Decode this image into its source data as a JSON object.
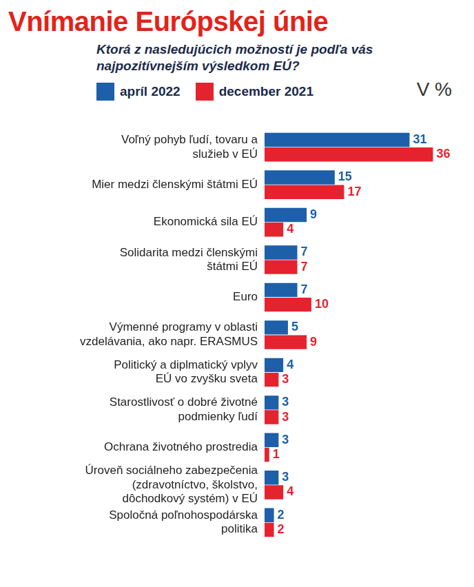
{
  "chart_data": {
    "type": "bar",
    "orientation": "horizontal",
    "title": "Vnímanie Európskej únie",
    "subtitle": "Ktorá z nasledujúcich možností je podľa vás najpozitívnejším výsledkom EÚ?",
    "xlabel": "V %",
    "categories": [
      "Voľný pohyb ľudí, tovaru a služieb v EÚ",
      "Mier medzi členskými štátmi EÚ",
      "Ekonomická sila EÚ",
      "Solidarita medzi členskými štátmi EÚ",
      "Euro",
      "Výmenné programy v oblasti vzdelávania, ako napr. ERASMUS",
      "Politický a diplmatický vplyv EÚ vo zvyšku sveta",
      "Starostlivosť o dobré životné podmienky ľudí",
      "Ochrana životného prostredia",
      "Úroveň sociálneho zabezpečenia (zdravotníctvo, školstvo, dôchodkový systém) v EÚ",
      "Spoločná poľnohospodárska politika"
    ],
    "series": [
      {
        "name": "apríl 2022",
        "color": "#1d5fa9",
        "values": [
          31,
          15,
          9,
          7,
          7,
          5,
          4,
          3,
          3,
          3,
          2
        ]
      },
      {
        "name": "december 2021",
        "color": "#e5232f",
        "values": [
          36,
          17,
          4,
          7,
          10,
          9,
          3,
          3,
          1,
          4,
          2
        ]
      }
    ],
    "xlim": [
      0,
      38
    ],
    "grid": false,
    "legend": "top",
    "data_labels": true,
    "tick_labels": "y"
  }
}
